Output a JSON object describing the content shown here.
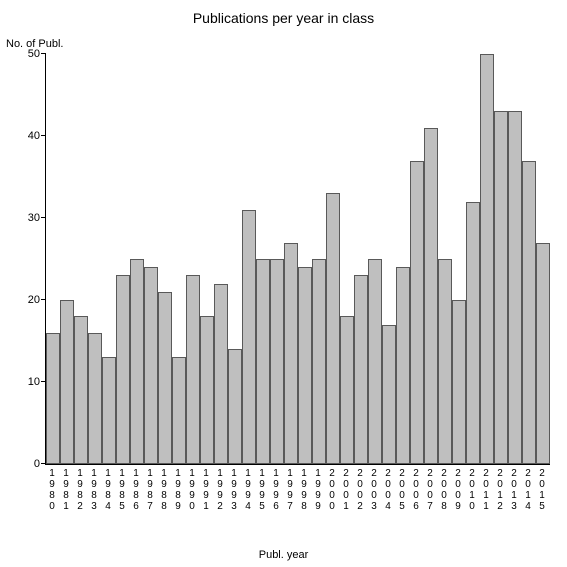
{
  "chart": {
    "type": "bar",
    "title": "Publications per year in class",
    "title_fontsize": 14,
    "ylabel": "No. of Publ.",
    "xlabel": "Publ. year",
    "label_fontsize": 11,
    "ylim": [
      0,
      50
    ],
    "yticks": [
      0,
      10,
      20,
      30,
      40,
      50
    ],
    "categories": [
      "1980",
      "1981",
      "1982",
      "1983",
      "1984",
      "1985",
      "1986",
      "1987",
      "1988",
      "1989",
      "1990",
      "1991",
      "1992",
      "1993",
      "1994",
      "1995",
      "1996",
      "1997",
      "1998",
      "1999",
      "2000",
      "2001",
      "2002",
      "2003",
      "2004",
      "2005",
      "2006",
      "2007",
      "2008",
      "2009",
      "2010",
      "2011",
      "2012",
      "2013",
      "2014",
      "2015"
    ],
    "values": [
      16,
      20,
      18,
      16,
      13,
      23,
      25,
      24,
      21,
      13,
      23,
      18,
      22,
      14,
      31,
      25,
      25,
      27,
      24,
      25,
      33,
      18,
      23,
      25,
      17,
      24,
      37,
      41,
      25,
      20,
      32,
      50,
      43,
      43,
      37,
      27
    ],
    "bar_color": "#bfbfbf",
    "bar_border_color": "#595959",
    "background_color": "#ffffff",
    "axis_color": "#000000",
    "tick_fontsize": 11,
    "xtick_fontsize": 10,
    "bar_width": 1.0
  }
}
